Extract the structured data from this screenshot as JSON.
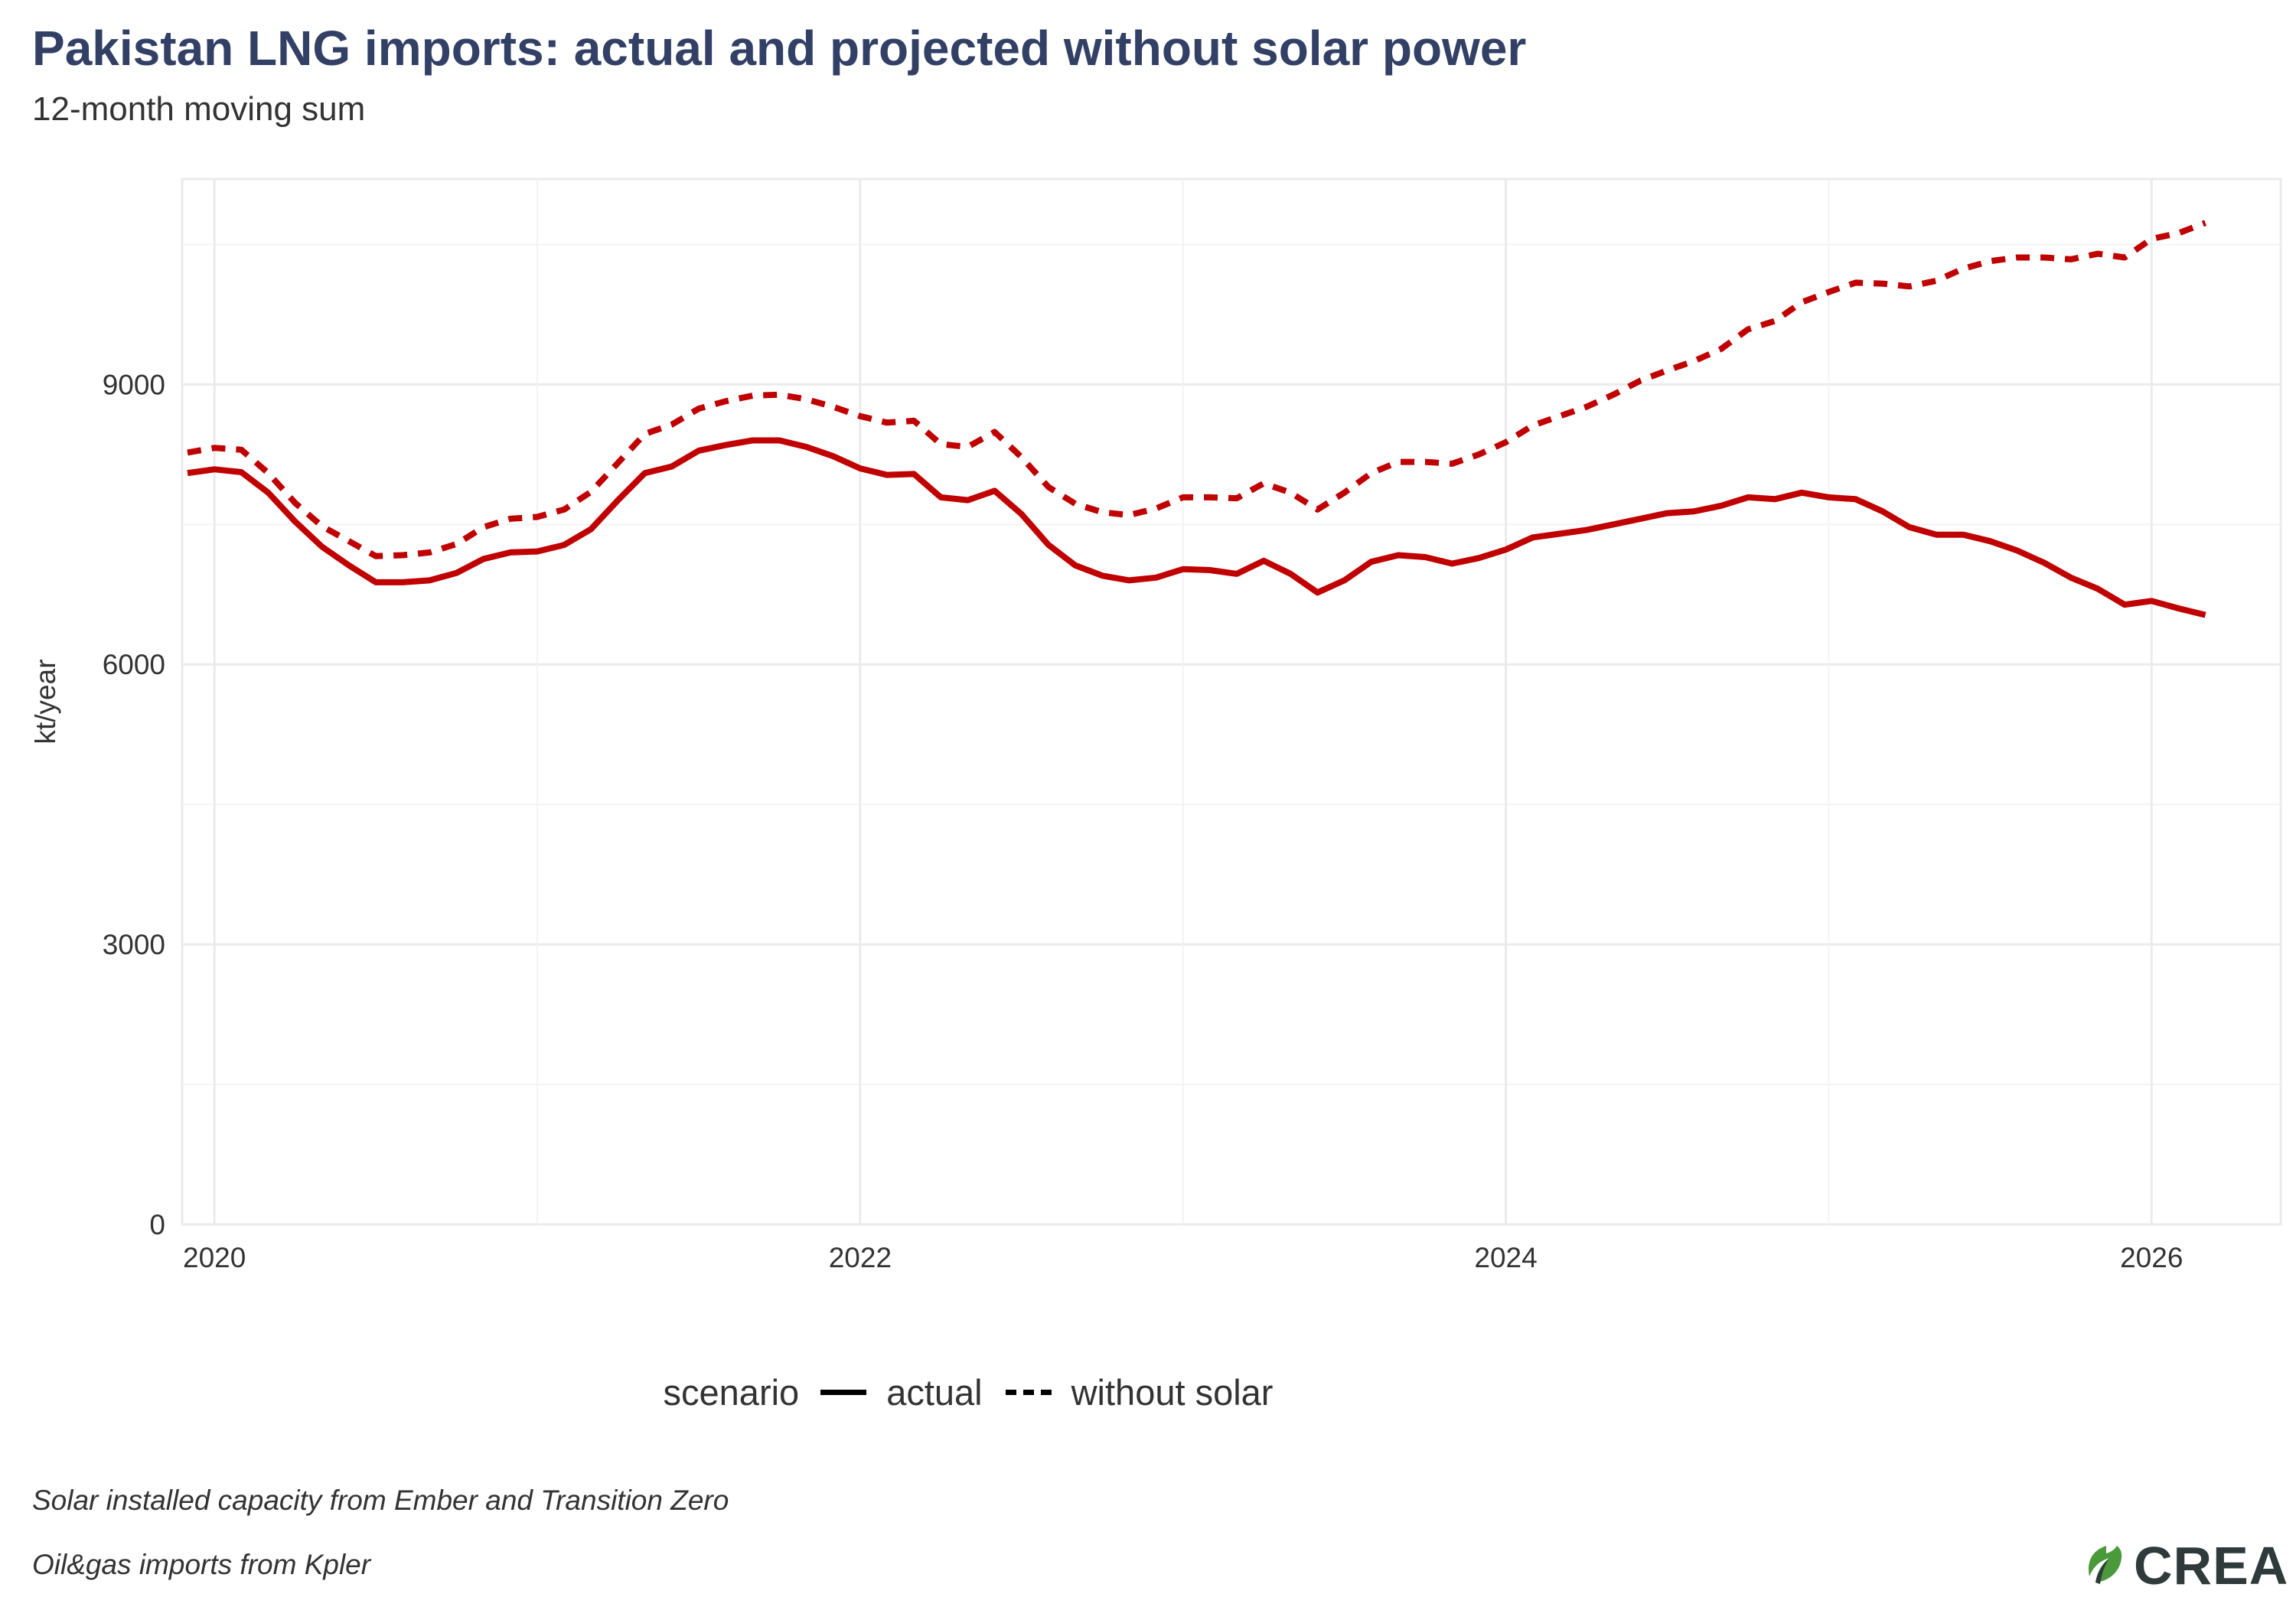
{
  "title": "Pakistan LNG imports: actual and projected without solar power",
  "subtitle": "12-month moving sum",
  "captions": [
    "Solar installed capacity from Ember and Transition Zero",
    "Oil&gas imports from Kpler"
  ],
  "logo": {
    "text": "CREA",
    "icon": "crea-leaf-icon",
    "colors": [
      "#4a9a3c",
      "#2f3a3a"
    ]
  },
  "legend": {
    "title": "scenario",
    "items": [
      {
        "label": "actual",
        "style": "solid"
      },
      {
        "label": "without solar",
        "style": "dashed"
      }
    ]
  },
  "chart_data": {
    "type": "line",
    "title": "Pakistan LNG imports: actual and projected without solar power",
    "subtitle": "12-month moving sum",
    "xlabel": "",
    "ylabel": "kt/year",
    "x_start": "2019-12",
    "x_step": "month",
    "xlim": [
      2019.9,
      2026.4
    ],
    "ylim": [
      0,
      11200
    ],
    "xticks": [
      2020,
      2022,
      2024,
      2026
    ],
    "xtick_labels": [
      "2020",
      "2022",
      "2024",
      "2026"
    ],
    "yticks": [
      0,
      3000,
      6000,
      9000
    ],
    "ytick_labels": [
      "0",
      "3000",
      "6000",
      "9000"
    ],
    "grid": true,
    "legend_position": "bottom",
    "line_color": "#c00000",
    "series": [
      {
        "name": "actual",
        "style": "solid",
        "values": [
          8050,
          8090,
          8060,
          7840,
          7530,
          7260,
          7060,
          6880,
          6880,
          6900,
          6980,
          7130,
          7200,
          7210,
          7280,
          7450,
          7760,
          8050,
          8120,
          8290,
          8350,
          8400,
          8400,
          8330,
          8230,
          8100,
          8030,
          8040,
          7790,
          7760,
          7860,
          7610,
          7280,
          7060,
          6950,
          6900,
          6930,
          7020,
          7010,
          6970,
          7110,
          6970,
          6770,
          6900,
          7100,
          7170,
          7150,
          7080,
          7140,
          7230,
          7360,
          7400,
          7440,
          7500,
          7560,
          7620,
          7640,
          7700,
          7790,
          7770,
          7840,
          7790,
          7770,
          7640,
          7470,
          7390,
          7390,
          7320,
          7220,
          7090,
          6930,
          6810,
          6640,
          6680,
          6600,
          6530
        ]
      },
      {
        "name": "without solar",
        "style": "dashed",
        "values": [
          8270,
          8320,
          8300,
          8050,
          7730,
          7480,
          7320,
          7160,
          7170,
          7200,
          7290,
          7470,
          7560,
          7580,
          7660,
          7850,
          8160,
          8470,
          8570,
          8740,
          8820,
          8880,
          8890,
          8840,
          8760,
          8660,
          8590,
          8610,
          8360,
          8330,
          8490,
          8220,
          7900,
          7720,
          7630,
          7600,
          7670,
          7790,
          7790,
          7780,
          7940,
          7840,
          7660,
          7840,
          8050,
          8170,
          8170,
          8150,
          8250,
          8380,
          8560,
          8660,
          8760,
          8890,
          9040,
          9150,
          9250,
          9380,
          9590,
          9680,
          9880,
          9990,
          10090,
          10080,
          10050,
          10110,
          10240,
          10320,
          10360,
          10360,
          10340,
          10400,
          10360,
          10560,
          10620,
          10730
        ]
      }
    ]
  }
}
